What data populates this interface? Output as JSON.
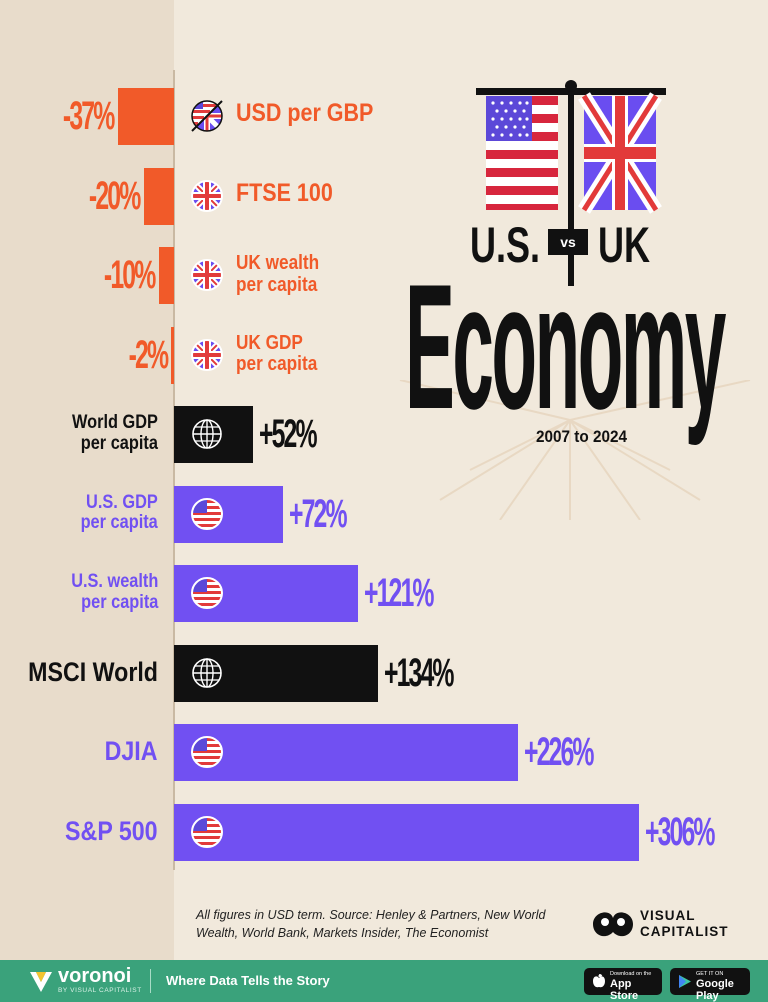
{
  "chart_data": {
    "type": "bar",
    "orientation": "horizontal",
    "title_parts": [
      "U.S.",
      "vs",
      "UK",
      "Economy"
    ],
    "subtitle": "2007 to 2024",
    "categories": [
      "USD per GBP",
      "FTSE 100",
      "UK wealth\nper capita",
      "UK GDP\nper capita",
      "World GDP\nper capita",
      "U.S. GDP\nper capita",
      "U.S. wealth\nper capita",
      "MSCI World",
      "DJIA",
      "S&P 500"
    ],
    "values": [
      -37,
      -20,
      -10,
      -2,
      52,
      72,
      121,
      134,
      226,
      306
    ],
    "value_labels": [
      "-37%",
      "-20%",
      "-10%",
      "-2%",
      "+52%",
      "+72%",
      "+121%",
      "+134%",
      "+226%",
      "+306%"
    ],
    "groups": [
      "uk",
      "uk",
      "uk",
      "uk",
      "world",
      "us",
      "us",
      "world",
      "us",
      "us"
    ],
    "icons": [
      "us-uk-flag-icon",
      "uk-flag-icon",
      "uk-flag-icon",
      "uk-flag-icon",
      "globe-icon",
      "us-flag-icon",
      "us-flag-icon",
      "globe-icon",
      "us-flag-icon",
      "us-flag-icon"
    ],
    "colors": {
      "uk": "#f15a29",
      "world": "#111111",
      "us": "#7150f2"
    },
    "unit": "%",
    "xlim": [
      -40,
      310
    ],
    "grid": false,
    "legend": "none"
  },
  "source_text": "All figures in USD term. Source: Henley & Partners, New World Wealth, World Bank, Markets Insider, The Economist",
  "brand": {
    "line1": "VISUAL",
    "line2": "CAPITALIST"
  },
  "footer": {
    "logo": "voronoi",
    "logo_sub": "BY VISUAL CAPITALIST",
    "tagline": "Where Data Tells the Story",
    "app_store_small": "Download on the",
    "app_store": "App Store",
    "play_small": "GET IT ON",
    "play": "Google Play",
    "bg": "#3aa27b"
  }
}
